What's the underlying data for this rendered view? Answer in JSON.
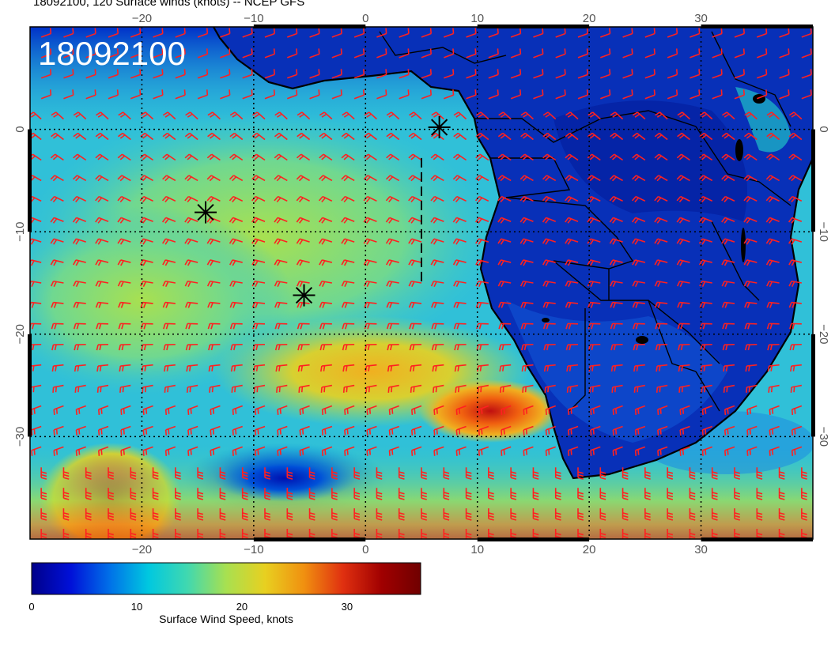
{
  "title": "18092100, 120 Surface winds (knots) -- NCEP GFS",
  "stamp": "18092100",
  "map": {
    "lon_range": [
      -30,
      40
    ],
    "lat_range": [
      -40,
      10
    ],
    "x_ticks": [
      -20,
      -10,
      0,
      10,
      20,
      30
    ],
    "y_ticks": [
      0,
      -10,
      -20,
      -30
    ],
    "x_tick_labels": [
      "−20",
      "−10",
      "0",
      "10",
      "20",
      "30"
    ],
    "y_tick_labels": [
      "0",
      "−10",
      "−20",
      "−30"
    ],
    "markers": [
      {
        "lon": 6.6,
        "lat": 0.2
      },
      {
        "lon": -14.3,
        "lat": -8.1
      },
      {
        "lon": -5.5,
        "lat": -16.2
      }
    ],
    "dashed_line": [
      {
        "lon": 5.0,
        "lat": -2.8
      },
      {
        "lon": 5.0,
        "lat": -15.0
      }
    ],
    "wind_barb_color": "#ff2020",
    "coast_color": "#000000"
  },
  "colorbar": {
    "label": "Surface Wind Speed, knots",
    "range": [
      0,
      37
    ],
    "tick_values": [
      0,
      10,
      20,
      30
    ],
    "tick_labels": [
      "0",
      "10",
      "20",
      "30"
    ],
    "colors": [
      "#00008a",
      "#0010d8",
      "#0070e8",
      "#00c8e0",
      "#40d8b0",
      "#a8e050",
      "#e8d020",
      "#f09010",
      "#e03010",
      "#a00000",
      "#700000"
    ]
  }
}
